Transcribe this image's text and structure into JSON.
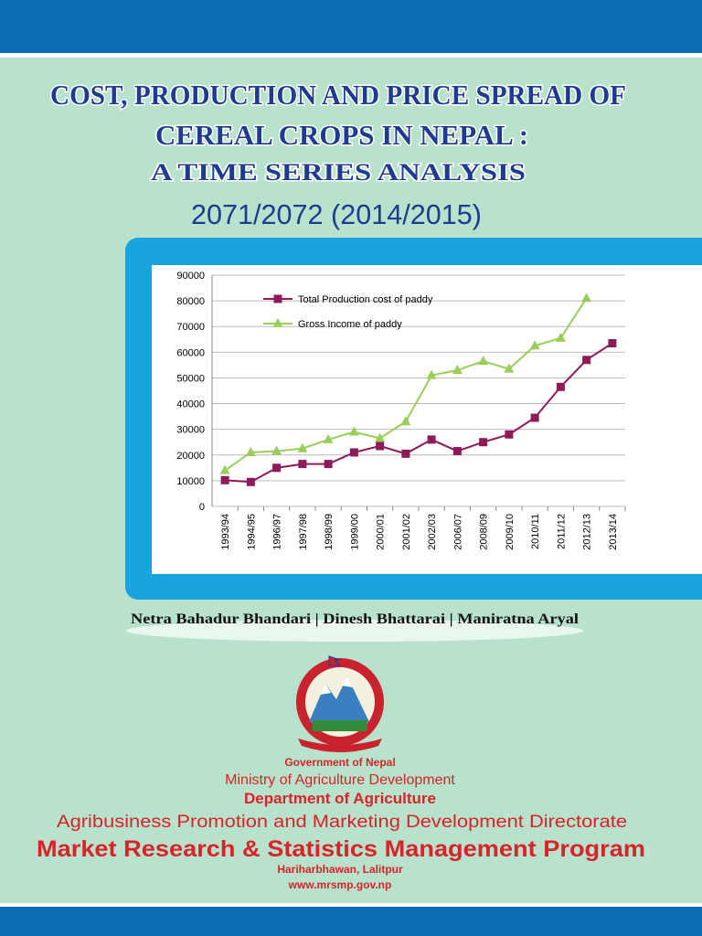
{
  "header": {
    "title_line1": "COST, PRODUCTION AND PRICE SPREAD OF",
    "title_line2": "CEREAL CROPS IN NEPAL :",
    "subtitle": "A TIME SERIES ANALYSIS",
    "years": "2071/2072 (2014/2015)"
  },
  "authors": "Netra Bahadur Bhandari | Dinesh Bhattarai | Maniratna Aryal",
  "footer": {
    "government": "Government of Nepal",
    "ministry": "Ministry of Agriculture Development",
    "department": "Department of Agriculture",
    "directorate": "Agribusiness Promotion and Marketing Development Directorate",
    "program": "Market Research & Statistics Management Program",
    "address": "Hariharbhawan, Lalitpur",
    "website": "www.mrsmp.gov.np"
  },
  "chart_data": {
    "type": "line",
    "categories": [
      "1993/94",
      "1994/95",
      "1996/97",
      "1997/98",
      "1998/99",
      "1999/00",
      "2000/01",
      "2001/02",
      "2002/03",
      "2006/07",
      "2008/09",
      "2009/10",
      "2010/11",
      "2011/12",
      "2012/13",
      "2013/14"
    ],
    "series": [
      {
        "name": "Total Production cost of paddy",
        "color": "#8e1a5a",
        "marker": "square",
        "values": [
          10200,
          9500,
          15000,
          16500,
          16500,
          21000,
          23500,
          20500,
          26000,
          21500,
          25000,
          28000,
          34500,
          46500,
          57000,
          63500
        ]
      },
      {
        "name": "Gross Income of paddy",
        "color": "#9acd5a",
        "marker": "triangle",
        "values": [
          14000,
          21000,
          21500,
          22500,
          26000,
          29000,
          26500,
          33000,
          51000,
          53000,
          56500,
          53500,
          62500,
          65500,
          81000,
          null
        ]
      }
    ],
    "ylim": [
      0,
      90000
    ],
    "yticks": [
      0,
      10000,
      20000,
      30000,
      40000,
      50000,
      60000,
      70000,
      80000,
      90000
    ],
    "grid": true
  }
}
